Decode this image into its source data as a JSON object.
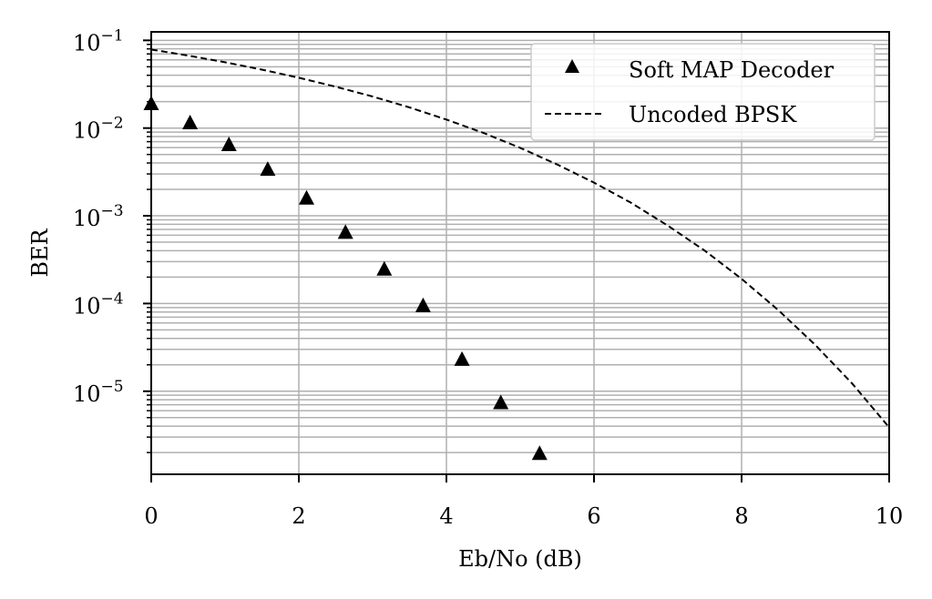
{
  "chart_data": {
    "type": "scatter",
    "title": "",
    "xlabel": "Eb/No (dB)",
    "ylabel": "BER",
    "xlim": [
      0,
      10
    ],
    "ylim": [
      1.13e-06,
      0.125
    ],
    "yscale": "log",
    "grid": true,
    "legend_position": "top-right",
    "x_ticks": [
      0,
      2,
      4,
      6,
      8,
      10
    ],
    "x_tick_labels": [
      "0",
      "2",
      "4",
      "6",
      "8",
      "10"
    ],
    "y_ticks": [
      0.1,
      0.01,
      0.001,
      0.0001,
      1e-05
    ],
    "y_tick_labels": [
      {
        "base": "10",
        "exp": "−1"
      },
      {
        "base": "10",
        "exp": "−2"
      },
      {
        "base": "10",
        "exp": "−3"
      },
      {
        "base": "10",
        "exp": "−4"
      },
      {
        "base": "10",
        "exp": "−5"
      }
    ],
    "series": [
      {
        "name": "Soft MAP Decoder",
        "kind": "markers",
        "marker": "triangle",
        "color": "#000000",
        "x": [
          0,
          0.526,
          1.053,
          1.579,
          2.105,
          2.632,
          3.158,
          3.684,
          4.211,
          4.737,
          5.263
        ],
        "y": [
          0.0185,
          0.0112,
          0.0063,
          0.0033,
          0.00155,
          0.00063,
          0.00024,
          9.2e-05,
          2.25e-05,
          7.2e-06,
          1.9e-06
        ]
      },
      {
        "name": "Uncoded BPSK",
        "kind": "line",
        "linestyle": "dashed",
        "color": "#000000",
        "x": [
          0,
          0.5,
          1,
          1.5,
          2,
          2.5,
          3,
          3.5,
          4,
          4.5,
          5,
          5.5,
          6,
          6.5,
          7,
          7.5,
          8,
          8.5,
          9,
          9.5,
          10
        ],
        "y": [
          0.0786,
          0.0671,
          0.0563,
          0.0464,
          0.0375,
          0.0296,
          0.0229,
          0.0172,
          0.0125,
          0.00882,
          0.00595,
          0.00385,
          0.00239,
          0.00141,
          0.000773,
          0.000401,
          0.000191,
          8.37e-05,
          3.36e-05,
          1.22e-05,
          3.87e-06
        ]
      }
    ]
  }
}
